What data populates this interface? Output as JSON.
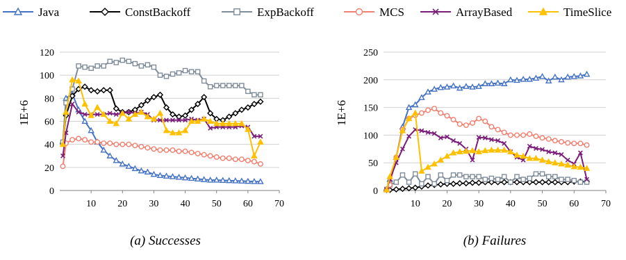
{
  "legend": [
    {
      "name": "Java",
      "color": "#4472C4",
      "marker": "triangle-open"
    },
    {
      "name": "ConstBackoff",
      "color": "#000000",
      "marker": "diamond-open"
    },
    {
      "name": "ExpBackoff",
      "color": "#7F8C99",
      "marker": "square-open"
    },
    {
      "name": "MCS",
      "color": "#F08070",
      "marker": "circle-open"
    },
    {
      "name": "ArrayBased",
      "color": "#7B1E7A",
      "marker": "cross"
    },
    {
      "name": "TimeSlice",
      "color": "#FFC000",
      "marker": "triangle-filled"
    }
  ],
  "chart_data": [
    {
      "type": "line",
      "caption": "(a) Successes",
      "ylabel": "1E+6",
      "xlim": [
        0,
        70
      ],
      "ylim": [
        0,
        120
      ],
      "xticks": [
        10,
        20,
        30,
        40,
        50,
        60,
        70
      ],
      "yticks": [
        0,
        20,
        40,
        60,
        80,
        100,
        120
      ],
      "grid": "horizontal",
      "x": [
        1,
        2,
        4,
        6,
        8,
        10,
        12,
        14,
        16,
        18,
        20,
        22,
        24,
        26,
        28,
        30,
        32,
        34,
        36,
        38,
        40,
        42,
        44,
        46,
        48,
        50,
        52,
        54,
        56,
        58,
        60,
        62,
        64
      ],
      "series": [
        {
          "name": "Java",
          "values": [
            42,
            80,
            84,
            70,
            60,
            52,
            42,
            35,
            30,
            26,
            23,
            21,
            19,
            17,
            16,
            14,
            13,
            12.5,
            12,
            11.5,
            11,
            10.5,
            10,
            9.5,
            9,
            9,
            8.8,
            8.6,
            8.4,
            8.2,
            8,
            7.8,
            7.7
          ]
        },
        {
          "name": "ConstBackoff",
          "values": [
            41,
            65,
            82,
            88,
            90,
            87,
            86,
            87,
            87,
            71,
            68,
            68,
            70,
            74,
            78,
            81,
            83,
            72,
            66,
            64,
            65,
            70,
            75,
            81,
            67,
            62,
            61,
            64,
            67,
            70,
            72,
            75,
            77
          ]
        },
        {
          "name": "ExpBackoff",
          "values": [
            42,
            76,
            88,
            108,
            107,
            106,
            108,
            108,
            112,
            111,
            113,
            112,
            110,
            108,
            109,
            107,
            100,
            99,
            101,
            102,
            104,
            103,
            103,
            95,
            90,
            91,
            91,
            91,
            91,
            91,
            86,
            83,
            83
          ]
        },
        {
          "name": "MCS",
          "values": [
            21,
            41,
            44,
            45,
            44,
            42,
            42,
            41,
            41,
            40,
            40,
            40,
            39,
            38,
            37,
            36,
            35,
            35,
            35,
            34,
            34,
            33,
            32,
            31,
            30,
            29,
            28,
            28,
            27,
            27,
            26,
            25,
            23
          ]
        },
        {
          "name": "ArrayBased",
          "values": [
            30,
            50,
            75,
            68,
            66,
            66,
            66,
            66,
            67,
            66,
            67,
            68,
            67,
            68,
            66,
            61,
            61,
            61,
            61,
            61,
            61,
            62,
            61,
            62,
            54,
            55,
            55,
            55,
            55,
            56,
            55,
            47,
            47
          ]
        },
        {
          "name": "TimeSlice",
          "values": [
            40,
            68,
            96,
            95,
            75,
            65,
            72,
            66,
            60,
            58,
            67,
            62,
            66,
            68,
            64,
            62,
            67,
            52,
            50,
            50,
            52,
            60,
            60,
            62,
            60,
            58,
            58,
            58,
            58,
            58,
            53,
            30,
            42
          ]
        }
      ]
    },
    {
      "type": "line",
      "caption": "(b) Failures",
      "ylabel": "1E+6",
      "xlim": [
        0,
        70
      ],
      "ylim": [
        0,
        250
      ],
      "xticks": [
        10,
        20,
        30,
        40,
        50,
        60,
        70
      ],
      "yticks": [
        0,
        50,
        100,
        150,
        200,
        250
      ],
      "grid": "horizontal",
      "x": [
        1,
        2,
        4,
        6,
        8,
        10,
        12,
        14,
        16,
        18,
        20,
        22,
        24,
        26,
        28,
        30,
        32,
        34,
        36,
        38,
        40,
        42,
        44,
        46,
        48,
        50,
        52,
        54,
        56,
        58,
        60,
        62,
        64
      ],
      "series": [
        {
          "name": "Java",
          "values": [
            2,
            20,
            60,
            115,
            150,
            155,
            168,
            178,
            183,
            186,
            187,
            189,
            185,
            188,
            187,
            188,
            193,
            193,
            194,
            193,
            200,
            199,
            201,
            201,
            203,
            206,
            198,
            205,
            200,
            205,
            206,
            207,
            210
          ]
        },
        {
          "name": "ConstBackoff",
          "values": [
            1,
            1,
            2,
            3,
            4,
            5,
            7,
            9,
            10,
            11,
            12,
            12,
            13,
            13,
            14,
            14,
            15,
            15,
            15,
            15,
            15,
            15,
            15,
            15,
            15,
            15,
            15,
            15,
            15,
            15,
            16,
            16,
            16
          ]
        },
        {
          "name": "ExpBackoff",
          "values": [
            2,
            10,
            15,
            28,
            15,
            30,
            12,
            25,
            12,
            28,
            18,
            28,
            28,
            25,
            25,
            25,
            20,
            22,
            20,
            25,
            15,
            25,
            20,
            22,
            30,
            30,
            25,
            25,
            20,
            20,
            18,
            15,
            15
          ]
        },
        {
          "name": "MCS",
          "values": [
            1,
            10,
            60,
            110,
            130,
            136,
            140,
            145,
            148,
            140,
            135,
            128,
            120,
            118,
            122,
            130,
            125,
            115,
            110,
            105,
            100,
            100,
            100,
            102,
            98,
            95,
            93,
            90,
            88,
            86,
            85,
            85,
            82
          ]
        },
        {
          "name": "ArrayBased",
          "values": [
            1,
            20,
            50,
            75,
            98,
            110,
            108,
            105,
            103,
            95,
            97,
            90,
            85,
            75,
            55,
            96,
            95,
            92,
            90,
            85,
            70,
            60,
            55,
            80,
            76,
            74,
            70,
            68,
            65,
            55,
            48,
            68,
            20
          ]
        },
        {
          "name": "TimeSlice",
          "values": [
            1,
            25,
            60,
            108,
            130,
            140,
            35,
            42,
            48,
            55,
            62,
            68,
            70,
            71,
            72,
            70,
            72,
            73,
            73,
            73,
            70,
            64,
            62,
            58,
            58,
            55,
            52,
            50,
            48,
            46,
            43,
            42,
            40
          ]
        }
      ]
    }
  ]
}
